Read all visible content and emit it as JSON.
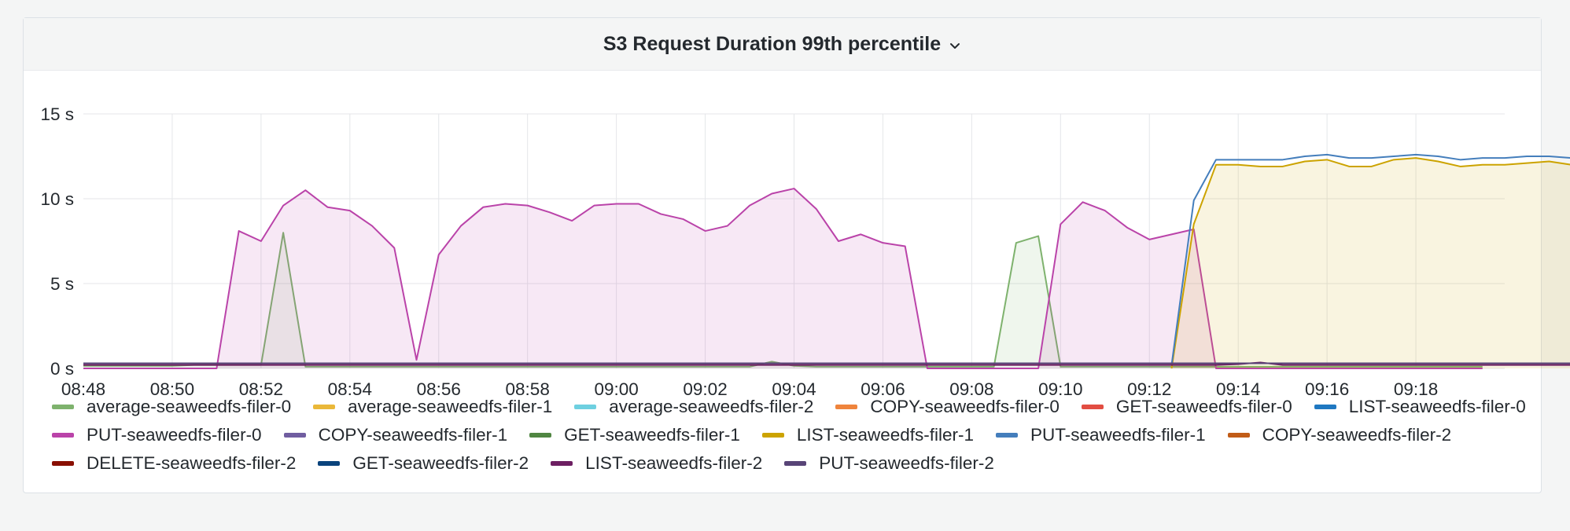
{
  "panel": {
    "title": "S3 Request Duration 99th percentile",
    "menu_icon": "chevron-down-icon"
  },
  "chart_data": {
    "type": "line",
    "title": "S3 Request Duration 99th percentile",
    "xlabel": "",
    "ylabel": "",
    "x_start": "08:48",
    "x_step_seconds": 30,
    "x_tick_labels": [
      "08:48",
      "08:50",
      "08:52",
      "08:54",
      "08:56",
      "08:58",
      "09:00",
      "09:02",
      "09:04",
      "09:06",
      "09:08",
      "09:10",
      "09:12",
      "09:14",
      "09:16",
      "09:18"
    ],
    "x_ticks_minutes": [
      0,
      2,
      4,
      6,
      8,
      10,
      12,
      14,
      16,
      18,
      20,
      22,
      24,
      26,
      28,
      30
    ],
    "y_tick_labels": [
      "0 s",
      "5 s",
      "10 s",
      "15 s"
    ],
    "y_ticks": [
      0,
      5,
      10,
      15
    ],
    "ylim": [
      0,
      15
    ],
    "xlim_minutes": [
      0,
      32
    ],
    "grid": true,
    "legend_position": "bottom",
    "series": [
      {
        "name": "average-seaweedfs-filer-0",
        "color": "#7eb26d",
        "fill": true,
        "values": [
          0.15,
          0.15,
          0.15,
          0.15,
          0.15,
          0.2,
          0.2,
          0.2,
          0.2,
          8.0,
          0.1,
          0.1,
          0.1,
          0.1,
          0.1,
          0.1,
          0.1,
          0.1,
          0.1,
          0.1,
          0.1,
          0.1,
          0.1,
          0.1,
          0.1,
          0.1,
          0.1,
          0.1,
          0.1,
          0.1,
          0.1,
          0.4,
          0.15,
          0.1,
          0.1,
          0.1,
          0.1,
          0.1,
          0.1,
          0.1,
          0.1,
          0.1,
          7.4,
          7.8,
          0.1,
          0.1,
          0.1,
          0.1,
          0.1,
          0.1,
          0.1,
          0.1,
          0.1,
          0.1,
          0.1,
          0.1,
          0.1,
          0.1,
          0.1,
          0.1,
          0.1,
          0.1,
          0.1,
          0.1
        ]
      },
      {
        "name": "average-seaweedfs-filer-1",
        "color": "#eab839",
        "fill": false,
        "values": []
      },
      {
        "name": "average-seaweedfs-filer-2",
        "color": "#6ed0e0",
        "fill": false,
        "values": []
      },
      {
        "name": "COPY-seaweedfs-filer-0",
        "color": "#ef843c",
        "fill": false,
        "values": []
      },
      {
        "name": "GET-seaweedfs-filer-0",
        "color": "#e24d42",
        "fill": false,
        "values": []
      },
      {
        "name": "LIST-seaweedfs-filer-0",
        "color": "#1f78c1",
        "fill": false,
        "values": []
      },
      {
        "name": "PUT-seaweedfs-filer-0",
        "color": "#ba43a9",
        "fill": true,
        "values": [
          0,
          0,
          0,
          0,
          0,
          0,
          0,
          8.1,
          7.5,
          9.6,
          10.5,
          9.5,
          9.3,
          8.4,
          7.1,
          0.5,
          6.7,
          8.4,
          9.5,
          9.7,
          9.6,
          9.2,
          8.7,
          9.6,
          9.7,
          9.7,
          9.1,
          8.8,
          8.1,
          8.4,
          9.6,
          10.3,
          10.6,
          9.4,
          7.5,
          7.9,
          7.4,
          7.2,
          0,
          0,
          0,
          0,
          0,
          0,
          8.5,
          9.8,
          9.3,
          8.3,
          7.6,
          7.9,
          8.2,
          0,
          0,
          0,
          0,
          0,
          0,
          0,
          0,
          0,
          0,
          0,
          0,
          0
        ]
      },
      {
        "name": "COPY-seaweedfs-filer-1",
        "color": "#705da0",
        "fill": false,
        "values": []
      },
      {
        "name": "GET-seaweedfs-filer-1",
        "color": "#508642",
        "fill": false,
        "values": []
      },
      {
        "name": "LIST-seaweedfs-filer-1",
        "color": "#cca300",
        "fill": true,
        "values": [
          null,
          null,
          null,
          null,
          null,
          null,
          null,
          null,
          null,
          null,
          null,
          null,
          null,
          null,
          null,
          null,
          null,
          null,
          null,
          null,
          null,
          null,
          null,
          null,
          null,
          null,
          null,
          null,
          null,
          null,
          null,
          null,
          null,
          null,
          null,
          null,
          null,
          null,
          null,
          null,
          null,
          null,
          null,
          null,
          null,
          null,
          null,
          null,
          null,
          0,
          8.5,
          12.0,
          12.0,
          11.9,
          11.9,
          12.2,
          12.3,
          11.9,
          11.9,
          12.3,
          12.4,
          12.2,
          11.9,
          12.0,
          12.0,
          12.1,
          12.2,
          12.0
        ]
      },
      {
        "name": "PUT-seaweedfs-filer-1",
        "color": "#447ebc",
        "fill": false,
        "values": [
          null,
          null,
          null,
          null,
          null,
          null,
          null,
          null,
          null,
          null,
          null,
          null,
          null,
          null,
          null,
          null,
          null,
          null,
          null,
          null,
          null,
          null,
          null,
          null,
          null,
          null,
          null,
          null,
          null,
          null,
          null,
          null,
          null,
          null,
          null,
          null,
          null,
          null,
          null,
          null,
          null,
          null,
          null,
          null,
          null,
          null,
          null,
          null,
          null,
          0.2,
          9.9,
          12.3,
          12.3,
          12.3,
          12.3,
          12.5,
          12.6,
          12.4,
          12.4,
          12.5,
          12.6,
          12.5,
          12.3,
          12.4,
          12.4,
          12.5,
          12.5,
          12.4
        ]
      },
      {
        "name": "COPY-seaweedfs-filer-2",
        "color": "#c15c17",
        "fill": false,
        "values": []
      },
      {
        "name": "DELETE-seaweedfs-filer-2",
        "color": "#890f02",
        "fill": false,
        "values": []
      },
      {
        "name": "GET-seaweedfs-filer-2",
        "color": "#0a437c",
        "fill": false,
        "values": []
      },
      {
        "name": "LIST-seaweedfs-filer-2",
        "color": "#6d1f62",
        "fill": false,
        "values": [
          0.2,
          0.2,
          0.2,
          0.2,
          0.2,
          0.2,
          0.2,
          0.2,
          0.2,
          0.2,
          0.2,
          0.2,
          0.2,
          0.2,
          0.2,
          0.2,
          0.2,
          0.2,
          0.2,
          0.2,
          0.2,
          0.2,
          0.2,
          0.2,
          0.2,
          0.2,
          0.2,
          0.2,
          0.2,
          0.2,
          0.2,
          0.2,
          0.2,
          0.2,
          0.2,
          0.2,
          0.2,
          0.2,
          0.2,
          0.2,
          0.2,
          0.2,
          0.2,
          0.2,
          0.2,
          0.2,
          0.2,
          0.2,
          0.2,
          0.2,
          0.2,
          0.2,
          0.25,
          0.35,
          0.2,
          0.2,
          0.2,
          0.2,
          0.2,
          0.2,
          0.2,
          0.2,
          0.2,
          0.2,
          0.2,
          0.2,
          0.2,
          0.2
        ]
      },
      {
        "name": "PUT-seaweedfs-filer-2",
        "color": "#584477",
        "fill": false,
        "values": [
          0.3,
          0.3,
          0.3,
          0.3,
          0.3,
          0.3,
          0.3,
          0.3,
          0.3,
          0.3,
          0.3,
          0.3,
          0.3,
          0.3,
          0.3,
          0.3,
          0.3,
          0.3,
          0.3,
          0.3,
          0.3,
          0.3,
          0.3,
          0.3,
          0.3,
          0.3,
          0.3,
          0.3,
          0.3,
          0.3,
          0.3,
          0.3,
          0.3,
          0.3,
          0.3,
          0.3,
          0.3,
          0.3,
          0.3,
          0.3,
          0.3,
          0.3,
          0.3,
          0.3,
          0.3,
          0.3,
          0.3,
          0.3,
          0.3,
          0.3,
          0.3,
          0.3,
          0.3,
          0.3,
          0.3,
          0.3,
          0.3,
          0.3,
          0.3,
          0.3,
          0.3,
          0.3,
          0.3,
          0.3,
          0.3,
          0.3,
          0.3,
          0.3
        ]
      }
    ]
  }
}
